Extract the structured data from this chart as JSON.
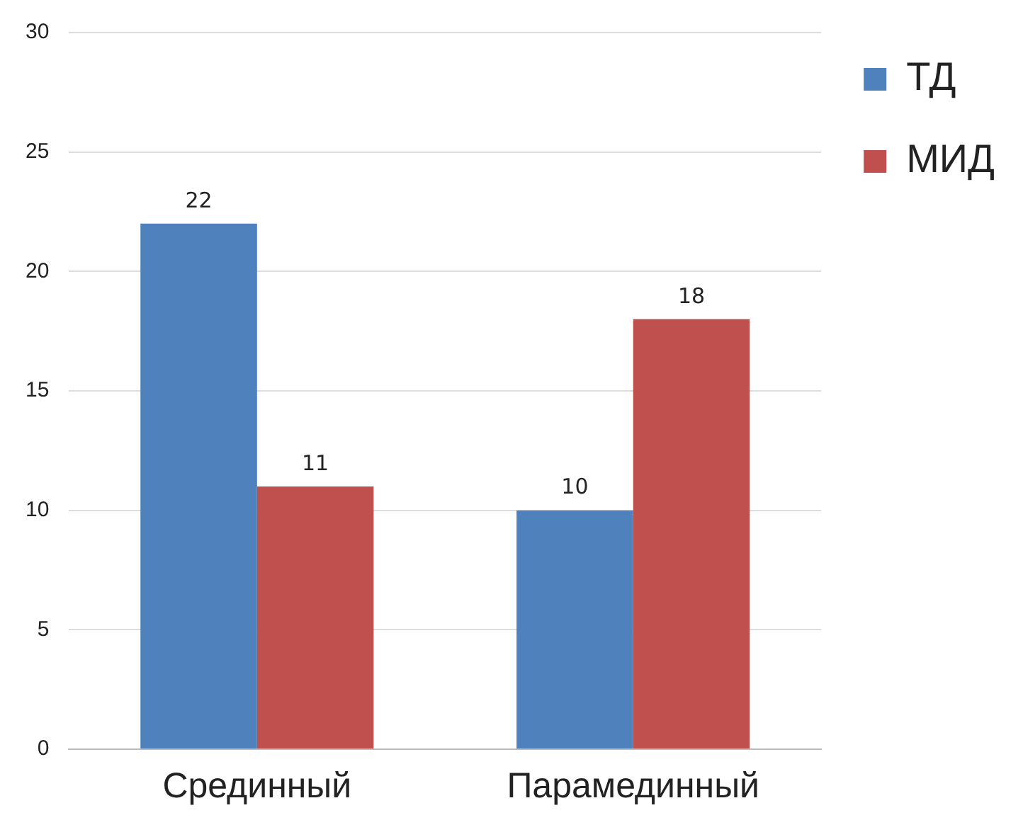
{
  "chart_data": {
    "type": "bar",
    "categories": [
      "Срединный",
      "Парамединный"
    ],
    "series": [
      {
        "name": "ТД",
        "color": "#4f81bd",
        "values": [
          22,
          10
        ]
      },
      {
        "name": "МИД",
        "color": "#c0504d",
        "values": [
          11,
          18
        ]
      }
    ],
    "ylim": [
      0,
      30
    ],
    "yticks": [
      0,
      5,
      10,
      15,
      20,
      25,
      30
    ],
    "grid": "y",
    "legend": "top right",
    "data_labels": true
  }
}
